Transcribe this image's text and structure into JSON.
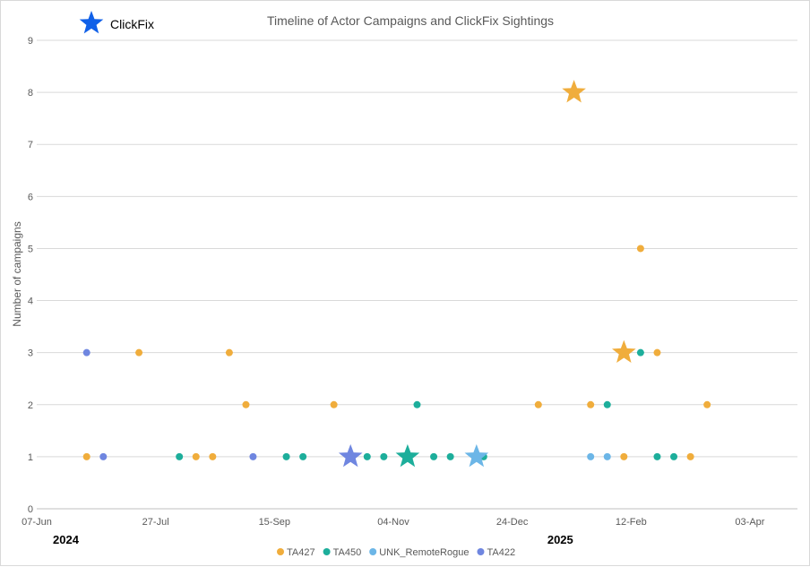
{
  "chart_data": {
    "type": "scatter",
    "title": "Timeline of Actor Campaigns and ClickFix Sightings",
    "xlabel": "",
    "ylabel": "Number of campaigns",
    "xlim": [
      "2024-06-07",
      "2025-04-23"
    ],
    "ylim": [
      0,
      9
    ],
    "y_ticks": [
      0,
      1,
      2,
      3,
      4,
      5,
      6,
      7,
      8,
      9
    ],
    "x_ticks": [
      {
        "date": "2024-06-07",
        "label": "07-Jun"
      },
      {
        "date": "2024-07-27",
        "label": "27-Jul"
      },
      {
        "date": "2024-09-15",
        "label": "15-Sep"
      },
      {
        "date": "2024-11-04",
        "label": "04-Nov"
      },
      {
        "date": "2024-12-24",
        "label": "24-Dec"
      },
      {
        "date": "2025-02-12",
        "label": "12-Feb"
      },
      {
        "date": "2025-04-03",
        "label": "03-Apr"
      }
    ],
    "year_labels": [
      {
        "date": "2024-06-07",
        "label": "2024"
      },
      {
        "date": "2025-01-01",
        "label": "2025"
      }
    ],
    "grid": "horizontal",
    "legend_position": "bottom",
    "series": [
      {
        "name": "TA427",
        "color": "#F0AD3C",
        "points": [
          {
            "x": "2024-06-28",
            "y": 1
          },
          {
            "x": "2024-07-20",
            "y": 3
          },
          {
            "x": "2024-08-13",
            "y": 1
          },
          {
            "x": "2024-08-20",
            "y": 1
          },
          {
            "x": "2024-08-27",
            "y": 3
          },
          {
            "x": "2024-09-03",
            "y": 2
          },
          {
            "x": "2024-10-10",
            "y": 2
          },
          {
            "x": "2025-01-04",
            "y": 2
          },
          {
            "x": "2025-01-26",
            "y": 2
          },
          {
            "x": "2025-02-09",
            "y": 1
          },
          {
            "x": "2025-02-16",
            "y": 5
          },
          {
            "x": "2025-02-23",
            "y": 3
          },
          {
            "x": "2025-03-09",
            "y": 1
          },
          {
            "x": "2025-03-16",
            "y": 2
          }
        ]
      },
      {
        "name": "TA450",
        "color": "#1DAE9B",
        "points": [
          {
            "x": "2024-08-06",
            "y": 1
          },
          {
            "x": "2024-09-20",
            "y": 1
          },
          {
            "x": "2024-09-27",
            "y": 1
          },
          {
            "x": "2024-10-24",
            "y": 1
          },
          {
            "x": "2024-10-31",
            "y": 1
          },
          {
            "x": "2024-11-14",
            "y": 2
          },
          {
            "x": "2024-11-21",
            "y": 1
          },
          {
            "x": "2024-11-28",
            "y": 1
          },
          {
            "x": "2024-12-12",
            "y": 1
          },
          {
            "x": "2025-02-02",
            "y": 2
          },
          {
            "x": "2025-02-16",
            "y": 3
          },
          {
            "x": "2025-02-23",
            "y": 1
          },
          {
            "x": "2025-03-02",
            "y": 1
          }
        ]
      },
      {
        "name": "UNK_RemoteRogue",
        "color": "#6CB6E7",
        "points": [
          {
            "x": "2025-01-26",
            "y": 1
          },
          {
            "x": "2025-02-02",
            "y": 1
          }
        ]
      },
      {
        "name": "TA422",
        "color": "#6F86E0",
        "points": [
          {
            "x": "2024-06-28",
            "y": 3
          },
          {
            "x": "2024-07-05",
            "y": 1
          },
          {
            "x": "2024-09-06",
            "y": 1
          }
        ]
      }
    ],
    "clickfix_sightings": {
      "label": "ClickFix",
      "key_color": "#1060E8",
      "points": [
        {
          "x": "2024-10-17",
          "y": 1,
          "actor": "TA422"
        },
        {
          "x": "2024-11-10",
          "y": 1,
          "actor": "TA450"
        },
        {
          "x": "2024-12-09",
          "y": 1,
          "actor": "UNK_RemoteRogue"
        },
        {
          "x": "2025-01-19",
          "y": 8,
          "actor": "TA427"
        },
        {
          "x": "2025-02-09",
          "y": 3,
          "actor": "TA427"
        }
      ]
    }
  }
}
